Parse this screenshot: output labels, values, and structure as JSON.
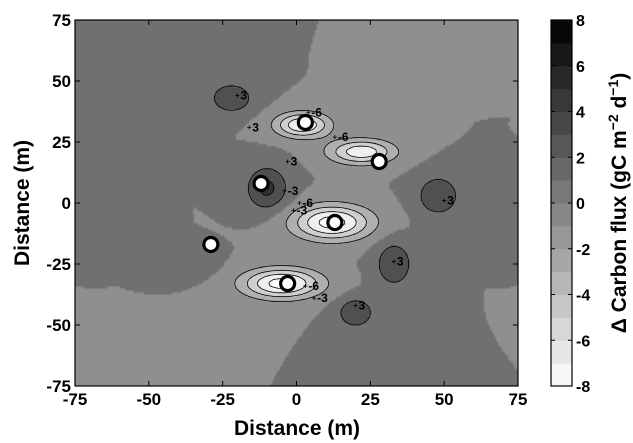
{
  "chart_data": {
    "type": "heatmap",
    "title": "",
    "xlabel": "Distance (m)",
    "ylabel": "Distance (m)",
    "xlim": [
      -75,
      75
    ],
    "ylim": [
      -75,
      75
    ],
    "xticks": [
      "-75",
      "-50",
      "-25",
      "0",
      "25",
      "50",
      "75"
    ],
    "yticks": [
      "75",
      "50",
      "25",
      "0",
      "-25",
      "-50",
      "-75"
    ],
    "colorbar": {
      "label_prefix": "Δ Carbon flux (gC m",
      "label_exp1": "−2",
      "label_mid": " d",
      "label_exp2": "−1",
      "label_suffix": ")",
      "range": [
        -8,
        8
      ],
      "ticks": [
        "8",
        "6",
        "4",
        "2",
        "0",
        "-2",
        "-4",
        "-6",
        "-8"
      ]
    },
    "grid": false,
    "features": [
      {
        "kind": "max",
        "x": -22,
        "y": 43,
        "amp": 4.0,
        "sx": 7,
        "sy": 6
      },
      {
        "kind": "min",
        "x": 2,
        "y": 32,
        "amp": -8.0,
        "sx": 9,
        "sy": 5
      },
      {
        "kind": "min",
        "x": 22,
        "y": 21,
        "amp": -7.5,
        "sx": 11,
        "sy": 5
      },
      {
        "kind": "max",
        "x": -10,
        "y": 6,
        "amp": 4.5,
        "sx": 7,
        "sy": 9
      },
      {
        "kind": "min",
        "x": 12,
        "y": -8,
        "amp": -9.0,
        "sx": 13,
        "sy": 7
      },
      {
        "kind": "min",
        "x": -5,
        "y": -33,
        "amp": -9.0,
        "sx": 13,
        "sy": 6
      },
      {
        "kind": "max",
        "x": 48,
        "y": 3,
        "amp": 4.0,
        "sx": 7,
        "sy": 8
      },
      {
        "kind": "max",
        "x": 33,
        "y": -25,
        "amp": 4.0,
        "sx": 6,
        "sy": 9
      },
      {
        "kind": "max",
        "x": 20,
        "y": -45,
        "amp": 4.0,
        "sx": 6,
        "sy": 6
      },
      {
        "kind": "max",
        "x": -55,
        "y": -10,
        "amp": 1.5,
        "sx": 6,
        "sy": 6
      },
      {
        "kind": "max",
        "x": -35,
        "y": -25,
        "amp": 1.5,
        "sx": 7,
        "sy": 5
      },
      {
        "kind": "min",
        "x": 32,
        "y": 45,
        "amp": -1.4,
        "sx": 8,
        "sy": 5
      }
    ],
    "contour_labels": [
      {
        "text": "3",
        "x": -19,
        "y": 44
      },
      {
        "text": "3",
        "x": -15,
        "y": 31
      },
      {
        "text": "-6",
        "x": 5,
        "y": 37
      },
      {
        "text": "-6",
        "x": 14,
        "y": 27
      },
      {
        "text": "3",
        "x": -2,
        "y": 17
      },
      {
        "text": "-3",
        "x": -3,
        "y": 5
      },
      {
        "text": "-3",
        "x": 0,
        "y": -3
      },
      {
        "text": "-6",
        "x": 2,
        "y": 0
      },
      {
        "text": "3",
        "x": 51,
        "y": 1
      },
      {
        "text": "3",
        "x": 34,
        "y": -24
      },
      {
        "text": "-6",
        "x": 4,
        "y": -34
      },
      {
        "text": "-3",
        "x": 7,
        "y": -39
      },
      {
        "text": "3",
        "x": 21,
        "y": -42
      }
    ],
    "towers": [
      {
        "x": 3,
        "y": 33
      },
      {
        "x": 28,
        "y": 17
      },
      {
        "x": -12,
        "y": 8
      },
      {
        "x": 13,
        "y": -8
      },
      {
        "x": -29,
        "y": -17
      },
      {
        "x": -3,
        "y": -33
      }
    ]
  }
}
